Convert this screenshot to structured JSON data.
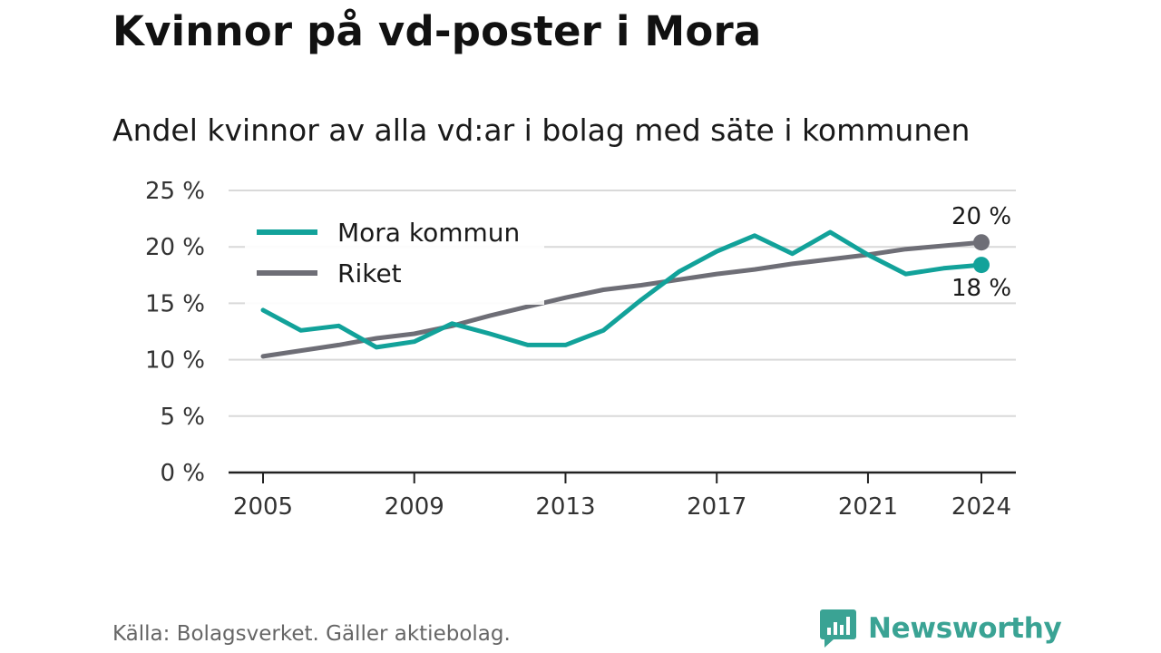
{
  "header": {
    "title": "Kvinnor på vd-poster i Mora",
    "subtitle": "Andel kvinnor av alla vd:ar i bolag med säte i kommunen"
  },
  "footer": {
    "source": "Källa: Bolagsverket. Gäller aktiebolag.",
    "brand": "Newsworthy",
    "brand_icon": "newsworthy-logo-icon"
  },
  "colors": {
    "mora": "#12a29a",
    "riket": "#6e6e76",
    "grid": "#d9d9d9",
    "axis": "#222222",
    "brand": "#3aa394"
  },
  "chart_data": {
    "type": "line",
    "x_ticks": [
      "2005",
      "2009",
      "2013",
      "2017",
      "2021",
      "2024"
    ],
    "y_ticks": [
      "0 %",
      "5 %",
      "10 %",
      "15 %",
      "20 %",
      "25 %"
    ],
    "ylim": [
      0,
      25
    ],
    "xlim": [
      2005,
      2024
    ],
    "grid": true,
    "legend_position": "top-left",
    "x": [
      2005,
      2006,
      2007,
      2008,
      2009,
      2010,
      2011,
      2012,
      2013,
      2014,
      2015,
      2016,
      2017,
      2018,
      2019,
      2020,
      2021,
      2022,
      2023,
      2024
    ],
    "series": [
      {
        "name": "Mora kommun",
        "color": "#12a29a",
        "values": [
          14.4,
          12.6,
          13.0,
          11.1,
          11.6,
          13.2,
          12.3,
          11.3,
          11.3,
          12.6,
          15.3,
          17.8,
          19.6,
          21.0,
          19.4,
          21.3,
          19.3,
          17.6,
          18.1,
          18.4
        ],
        "end_label": "18 %"
      },
      {
        "name": "Riket",
        "color": "#6e6e76",
        "values": [
          10.3,
          10.8,
          11.3,
          11.9,
          12.3,
          13.0,
          13.9,
          14.7,
          15.5,
          16.2,
          16.6,
          17.1,
          17.6,
          18.0,
          18.5,
          18.9,
          19.3,
          19.8,
          20.1,
          20.4
        ],
        "end_label": "20 %"
      }
    ]
  }
}
